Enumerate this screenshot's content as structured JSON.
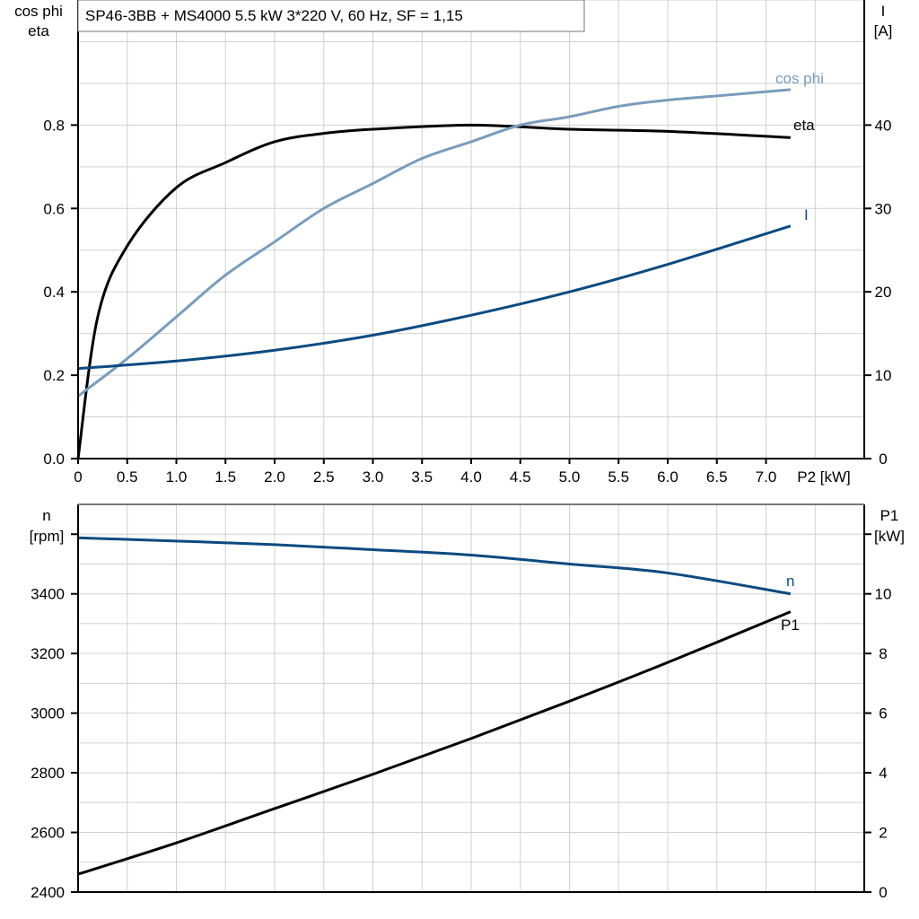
{
  "colors": {
    "eta": "#000000",
    "cosphi": "#7a9cbb",
    "I": "#0c4a80",
    "n": "#0c4a80",
    "P1": "#000000",
    "grid": "#d0d0d0"
  },
  "chart_data": [
    {
      "type": "line",
      "title": "SP46-3BB + MS4000   5.5 kW   3*220 V, 60 Hz, SF = 1,15",
      "xlabel": "P2 [kW]",
      "ylabel_left": [
        "cos phi",
        "eta"
      ],
      "ylabel_right": [
        "I",
        "[A]"
      ],
      "xlim": [
        0,
        8
      ],
      "ylim_left": [
        0,
        1.1
      ],
      "ylim_right": [
        0,
        55
      ],
      "x_ticks": [
        "0",
        "0.5",
        "1.0",
        "1.5",
        "2.0",
        "2.5",
        "3.0",
        "3.5",
        "4.0",
        "4.5",
        "5.0",
        "5.5",
        "6.0",
        "6.5",
        "7.0"
      ],
      "y_left_ticks": [
        "0.0",
        "0.2",
        "0.4",
        "0.6",
        "0.8"
      ],
      "y_right_ticks": [
        "0",
        "10",
        "20",
        "30",
        "40"
      ],
      "series": [
        {
          "name": "eta",
          "axis": "left",
          "x": [
            0,
            0.2,
            0.5,
            1,
            1.5,
            2,
            2.5,
            3,
            4,
            5,
            6,
            7.25
          ],
          "y": [
            0,
            0.34,
            0.51,
            0.65,
            0.71,
            0.76,
            0.78,
            0.79,
            0.8,
            0.79,
            0.785,
            0.77
          ]
        },
        {
          "name": "cos phi",
          "axis": "left",
          "x": [
            0,
            0.5,
            1,
            1.5,
            2,
            2.5,
            3,
            3.5,
            4,
            4.5,
            5,
            5.5,
            6,
            6.5,
            7.25
          ],
          "y": [
            0.15,
            0.24,
            0.34,
            0.44,
            0.52,
            0.6,
            0.66,
            0.72,
            0.76,
            0.8,
            0.82,
            0.845,
            0.86,
            0.87,
            0.885
          ]
        },
        {
          "name": "I",
          "axis": "right",
          "x": [
            0,
            1,
            2,
            3,
            4,
            5,
            6,
            7.25
          ],
          "y": [
            10.8,
            11.7,
            13,
            14.8,
            17.2,
            20,
            23.3,
            27.9
          ]
        }
      ]
    },
    {
      "type": "line",
      "xlim": [
        0,
        8
      ],
      "ylim_left": [
        2400,
        3700
      ],
      "ylim_right": [
        0,
        13
      ],
      "ylabel_left": [
        "n",
        "[rpm]"
      ],
      "ylabel_right": [
        "P1",
        "[kW]"
      ],
      "y_left_ticks": [
        "2400",
        "2600",
        "2800",
        "3000",
        "3200",
        "3400"
      ],
      "y_right_ticks": [
        "0",
        "2",
        "4",
        "6",
        "8",
        "10"
      ],
      "series": [
        {
          "name": "n",
          "axis": "left",
          "x": [
            0,
            1,
            2,
            3,
            4,
            5,
            6,
            7.25
          ],
          "y": [
            3588,
            3577,
            3565,
            3548,
            3530,
            3500,
            3470,
            3400
          ]
        },
        {
          "name": "P1",
          "axis": "right",
          "x": [
            0,
            1,
            2,
            3,
            4,
            5,
            6,
            7.25
          ],
          "y": [
            0.6,
            1.65,
            2.8,
            3.95,
            5.15,
            6.4,
            7.7,
            9.4
          ]
        }
      ]
    }
  ]
}
